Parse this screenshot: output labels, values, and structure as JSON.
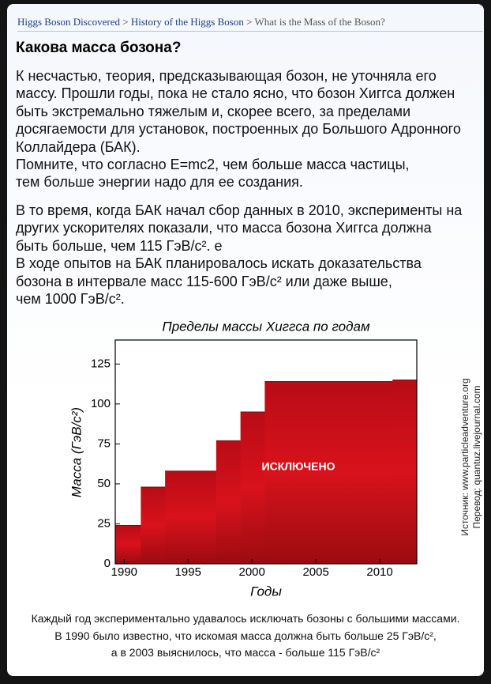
{
  "breadcrumb": {
    "items": [
      "Higgs Boson Discovered",
      "History of the Higgs Boson",
      "What is the Mass of the Boson?"
    ],
    "separator": ">"
  },
  "title": "Какова масса бозона?",
  "paragraphs": [
    [
      "К несчастью, теория, предсказывающая бозон, не уточняла его",
      "массу. Прошли годы, пока не стало ясно, что бозон Хиггса должен",
      "быть экстремально тяжелым и, скорее всего, за пределами",
      "досягаемости для установок, построенных до Большого Адронного",
      "Коллайдера (БАК).",
      "Помните, что согласно E=mc2, чем больше масса частицы,",
      "тем больше энергии надо для ее создания."
    ],
    [
      "В то время, когда БАК начал сбор данных в 2010, эксперименты на",
      "других ускорителях показали, что масса бозона Хиггса должна",
      "быть больше, чем 115 ГэВ/с². е",
      "В ходе опытов на БАК планировалось искать доказательства",
      "бозона в интервале масс 115-600 ГэВ/с² или даже выше,",
      "чем 1000 ГэВ/с²."
    ]
  ],
  "chart_data": {
    "type": "step-area",
    "title": "Пределы массы Хиггса по годам",
    "x_label": "Годы",
    "y_label": "Масса (ГэВ/с²)",
    "annotation": "ИСКЛЮЧЕНО",
    "x": [
      1989.3,
      1991.3,
      1993.2,
      1997.2,
      1999.1,
      2001,
      2011
    ],
    "values": [
      24,
      48,
      58,
      77,
      95,
      114,
      115
    ],
    "color": "#c8101a",
    "xlim": [
      1989.3,
      2012.9
    ],
    "xticks": [
      1990,
      1995,
      2000,
      2005,
      2010
    ],
    "ylim": [
      0,
      140
    ],
    "yticks": [
      0,
      25,
      50,
      75,
      100,
      125
    ]
  },
  "side_notes": [
    "Источник: www.particleadventure.org",
    "Перевод: quantuz.livejournal.com"
  ],
  "caption": [
    "Каждый год экспериментально удавалось исключать бозоны с большими массами.",
    "В 1990 было известно, что искомая масса должна быть больше 25 ГэВ/с²,",
    "а в  2003 выяснилось, что масса - больше 115 ГэВ/с²"
  ]
}
